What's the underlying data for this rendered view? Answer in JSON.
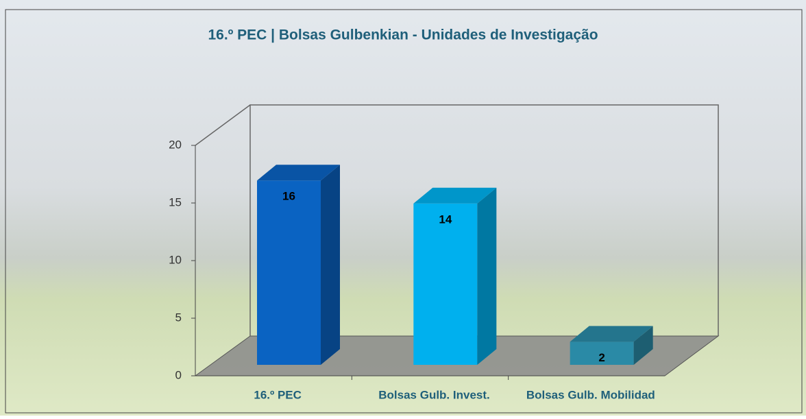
{
  "chart_data": {
    "type": "bar3d",
    "title": "16.º PEC | Bolsas Gulbenkian - Unidades de Investigação",
    "categories": [
      "16.º PEC",
      "Bolsas Gulb. Invest.",
      "Bolsas Gulb. Mobilidad"
    ],
    "values": [
      16,
      14,
      2
    ],
    "colors": [
      "#0a63c2",
      "#00b0ee",
      "#2a8aa6"
    ],
    "ylim": [
      0,
      20
    ],
    "yticks": [
      0,
      5,
      10,
      15,
      20
    ],
    "grid": false
  }
}
